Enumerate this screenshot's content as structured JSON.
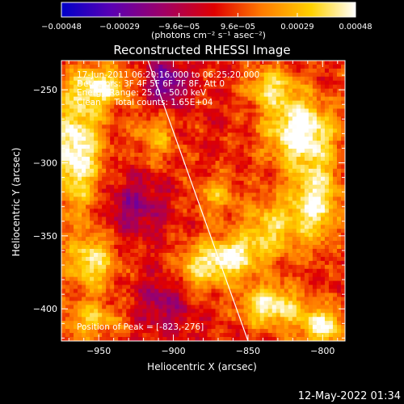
{
  "chart_data": {
    "type": "heatmap",
    "title": "Reconstructed RHESSI Image",
    "xlabel": "Heliocentric X (arcsec)",
    "ylabel": "Heliocentric Y (arcsec)",
    "xlim": [
      -975,
      -785
    ],
    "ylim": [
      -422,
      -230
    ],
    "x_ticks": [
      {
        "value": -950,
        "label": "−950"
      },
      {
        "value": -900,
        "label": "−900"
      },
      {
        "value": -850,
        "label": "−850"
      },
      {
        "value": -800,
        "label": "−800"
      }
    ],
    "y_ticks": [
      {
        "value": -250,
        "label": "−250"
      },
      {
        "value": -300,
        "label": "−300"
      },
      {
        "value": -350,
        "label": "−350"
      },
      {
        "value": -400,
        "label": "−400"
      }
    ],
    "colorbar": {
      "range": [
        -0.00048,
        0.00048
      ],
      "ticks": [
        {
          "value": -0.00048,
          "label": "−0.00048"
        },
        {
          "value": -0.00029,
          "label": "−0.00029"
        },
        {
          "value": -9.6e-05,
          "label": "−9.6e−05"
        },
        {
          "value": 9.6e-05,
          "label": "9.6e−05"
        },
        {
          "value": 0.00029,
          "label": "0.00029"
        },
        {
          "value": 0.00048,
          "label": "0.00048"
        }
      ],
      "unit_label": "(photons cm⁻² s⁻¹ asec⁻²)",
      "colors": [
        "#0000c8",
        "#5a00b4",
        "#a00064",
        "#e00000",
        "#ff7a00",
        "#ffd200",
        "#ffffff"
      ]
    },
    "annotations": [
      "17-Jun-2011 06:20:16.000 to 06:25:20.000",
      "Detectors: 3F 4F 5F 6F 7F 8F, Att 0",
      "Energy Range: 25.0 - 50.0 keV",
      "Clean     Total counts: 1.65E+04"
    ],
    "peak_label": "Position of Peak = [-823,-276]",
    "limb_line": {
      "x": [
        -917,
        -850
      ],
      "y": [
        -230,
        -422
      ]
    },
    "footer_date": "12-May-2022 01:34",
    "hotspots": [
      {
        "x": -965,
        "y": -292,
        "amp": 0.00046,
        "sx": 12,
        "sy": 28
      },
      {
        "x": -948,
        "y": -248,
        "amp": 0.00036,
        "sx": 14,
        "sy": 10
      },
      {
        "x": -912,
        "y": -282,
        "amp": 0.00022,
        "sx": 10,
        "sy": 12
      },
      {
        "x": -955,
        "y": -368,
        "amp": 0.00034,
        "sx": 12,
        "sy": 14
      },
      {
        "x": -955,
        "y": -408,
        "amp": 0.00026,
        "sx": 14,
        "sy": 9
      },
      {
        "x": -835,
        "y": -248,
        "amp": 0.0003,
        "sx": 12,
        "sy": 10
      },
      {
        "x": -815,
        "y": -278,
        "amp": 0.00048,
        "sx": 16,
        "sy": 16
      },
      {
        "x": -805,
        "y": -325,
        "amp": 0.0004,
        "sx": 12,
        "sy": 20
      },
      {
        "x": -835,
        "y": -345,
        "amp": 0.0003,
        "sx": 14,
        "sy": 14
      },
      {
        "x": -862,
        "y": -365,
        "amp": 0.0004,
        "sx": 14,
        "sy": 10
      },
      {
        "x": -835,
        "y": -398,
        "amp": 0.00042,
        "sx": 14,
        "sy": 10
      },
      {
        "x": -800,
        "y": -412,
        "amp": 0.00038,
        "sx": 12,
        "sy": 10
      },
      {
        "x": -885,
        "y": -375,
        "amp": 0.00026,
        "sx": 12,
        "sy": 12
      },
      {
        "x": -872,
        "y": -322,
        "amp": 0.00022,
        "sx": 10,
        "sy": 10
      },
      {
        "x": -905,
        "y": -245,
        "amp": -0.00032,
        "sx": 10,
        "sy": 12
      },
      {
        "x": -925,
        "y": -330,
        "amp": -0.00022,
        "sx": 14,
        "sy": 14
      },
      {
        "x": -905,
        "y": -395,
        "amp": -0.0002,
        "sx": 14,
        "sy": 14
      }
    ]
  }
}
